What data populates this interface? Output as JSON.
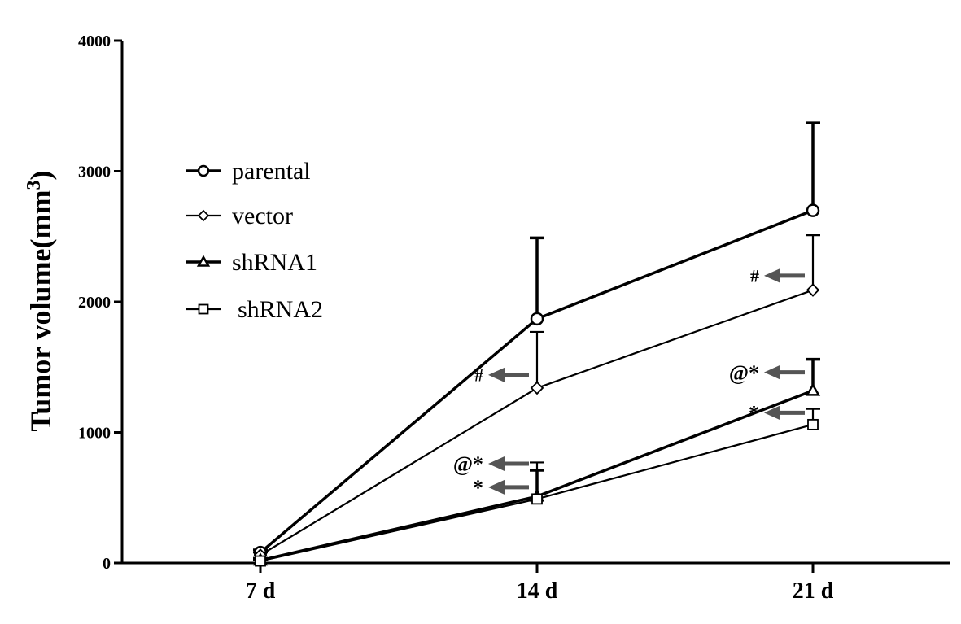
{
  "chart_data": {
    "type": "line",
    "categories": [
      "7 d",
      "14 d",
      "21 d"
    ],
    "ylabel_main": "Tumor volume(mm",
    "ylabel_sup": "3",
    "ylabel_close": ")",
    "ylim": [
      0,
      4000
    ],
    "yticks": [
      0,
      1000,
      2000,
      3000,
      4000
    ],
    "ytick_labels": [
      "0",
      "1000",
      "2000",
      "3000",
      "4000"
    ],
    "grid": false,
    "legend_position": "upper-left",
    "series": [
      {
        "name": "parental",
        "marker": "circle",
        "stroke_width": 3.5,
        "values": [
          80,
          1870,
          2700
        ],
        "errors": [
          20,
          620,
          670
        ]
      },
      {
        "name": "vector",
        "marker": "diamond",
        "stroke_width": 2.2,
        "values": [
          60,
          1340,
          2090
        ],
        "errors": [
          20,
          430,
          420
        ]
      },
      {
        "name": "shRNA1",
        "marker": "triangle",
        "stroke_width": 3.5,
        "values": [
          20,
          510,
          1320
        ],
        "errors": [
          15,
          200,
          240
        ]
      },
      {
        "name": "shRNA2",
        "marker": "square",
        "stroke_width": 2.2,
        "values": [
          15,
          490,
          1060
        ],
        "errors": [
          10,
          280,
          120
        ]
      }
    ],
    "annotations": [
      {
        "text": "#",
        "category": 1,
        "value": 1440,
        "size": 22
      },
      {
        "text": "#",
        "category": 2,
        "value": 2200,
        "size": 22
      },
      {
        "text": "@*",
        "category": 1,
        "value": 760,
        "size": 26
      },
      {
        "text": "*",
        "category": 1,
        "value": 580,
        "size": 26
      },
      {
        "text": "@*",
        "category": 2,
        "value": 1460,
        "size": 26
      },
      {
        "text": "*",
        "category": 2,
        "value": 1150,
        "size": 26
      }
    ]
  }
}
